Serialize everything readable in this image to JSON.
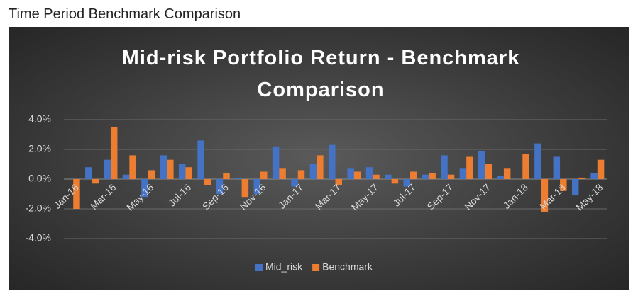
{
  "page_title": "Time Period Benchmark Comparison",
  "chart_data": {
    "type": "bar",
    "title": "Mid-risk Portfolio Return - Benchmark Comparison",
    "categories": [
      "Jan-16",
      null,
      "Mar-16",
      null,
      "May-16",
      null,
      "Jul-16",
      null,
      "Sep-16",
      null,
      "Nov-16",
      null,
      "Jan-17",
      null,
      "Mar-17",
      null,
      "May-17",
      null,
      "Jul-17",
      null,
      "Sep-17",
      null,
      "Nov-17",
      null,
      "Jan-18",
      null,
      "Mar-18",
      null,
      "May-18"
    ],
    "series": [
      {
        "name": "Mid_risk",
        "color": "#4472c4",
        "values": [
          0,
          0.8,
          1.3,
          0.3,
          -1.2,
          1.6,
          1.0,
          2.6,
          -1.0,
          0.1,
          -1.0,
          2.2,
          -0.5,
          1.0,
          2.3,
          0.7,
          0.8,
          0.3,
          -0.5,
          0.3,
          1.6,
          0.7,
          1.9,
          0.2,
          0,
          2.4,
          1.5,
          -1.1,
          0.4
        ]
      },
      {
        "name": "Benchmark",
        "color": "#ed7d31",
        "values": [
          -2.0,
          -0.3,
          3.5,
          1.6,
          0.6,
          1.3,
          0.8,
          -0.4,
          0.4,
          -1.2,
          0.5,
          0.7,
          0.6,
          1.6,
          -0.4,
          0.5,
          0.3,
          -0.3,
          0.5,
          0.4,
          0.3,
          1.5,
          1.0,
          0.7,
          1.7,
          -2.2,
          -0.8,
          0.1,
          1.3
        ]
      }
    ],
    "ylim": [
      -4,
      4
    ],
    "yticks": [
      {
        "value": -4,
        "label": "-4.0%"
      },
      {
        "value": -2,
        "label": "-2.0%"
      },
      {
        "value": 0,
        "label": "0.0%"
      },
      {
        "value": 2,
        "label": "2.0%"
      },
      {
        "value": 4,
        "label": "4.0%"
      }
    ],
    "grid": true,
    "legend": "bottom"
  }
}
